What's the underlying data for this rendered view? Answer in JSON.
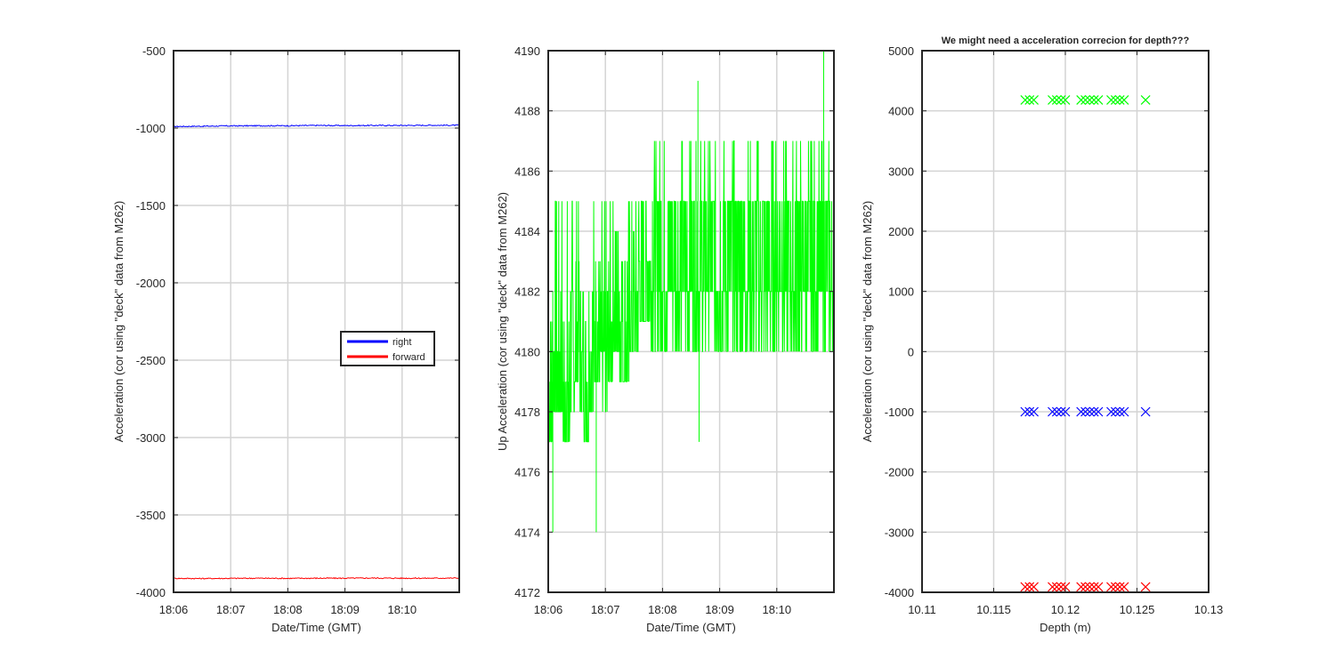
{
  "colors": {
    "right": "#0000ff",
    "forward": "#ff0000",
    "up": "#00ff00",
    "axes": "#262626",
    "grid": "#d4d4d4"
  },
  "chart_data": [
    {
      "type": "line",
      "title": "",
      "xlabel": "Date/Time (GMT)",
      "ylabel": "Acceleration (cor using \"deck\" data from M262)",
      "xlim": [
        "18:06",
        "18:11"
      ],
      "ylim": [
        -4000,
        -500
      ],
      "xticks": [
        "18:06",
        "18:07",
        "18:08",
        "18:09",
        "18:10"
      ],
      "yticks": [
        "-500",
        "-1000",
        "-1500",
        "-2000",
        "-2500",
        "-3000",
        "-3500",
        "-4000"
      ],
      "grid": true,
      "legend": {
        "position": "center-right",
        "entries": [
          "right",
          "forward"
        ]
      },
      "series": [
        {
          "name": "right",
          "color": "#0000ff",
          "x": [
            "18:06",
            "18:06:30",
            "18:07",
            "18:07:30",
            "18:08",
            "18:08:30",
            "18:09",
            "18:09:30",
            "18:10",
            "18:10:30",
            "18:11"
          ],
          "values": [
            -990,
            -988,
            -986,
            -985,
            -985,
            -983,
            -984,
            -983,
            -983,
            -982,
            -982
          ]
        },
        {
          "name": "forward",
          "color": "#ff0000",
          "x": [
            "18:06",
            "18:06:30",
            "18:07",
            "18:07:30",
            "18:08",
            "18:08:30",
            "18:09",
            "18:09:30",
            "18:10",
            "18:10:30",
            "18:11"
          ],
          "values": [
            -3910,
            -3911,
            -3910,
            -3909,
            -3910,
            -3909,
            -3909,
            -3908,
            -3909,
            -3909,
            -3908
          ]
        }
      ]
    },
    {
      "type": "line",
      "title": "",
      "xlabel": "Date/Time (GMT)",
      "ylabel": "Up Acceleration (cor using \"deck\" data from M262)",
      "xlim": [
        "18:06",
        "18:11"
      ],
      "ylim": [
        4172,
        4190
      ],
      "xticks": [
        "18:06",
        "18:07",
        "18:08",
        "18:09",
        "18:10"
      ],
      "yticks": [
        "4190",
        "4188",
        "4186",
        "4184",
        "4182",
        "4180",
        "4178",
        "4176",
        "4174",
        "4172"
      ],
      "grid": true,
      "series": [
        {
          "color": "#00ff00",
          "x": [
            "18:06",
            "18:06:10",
            "18:06:20",
            "18:06:30",
            "18:06:40",
            "18:06:50",
            "18:07",
            "18:07:10",
            "18:07:20",
            "18:07:30",
            "18:07:40",
            "18:07:50",
            "18:08",
            "18:08:10",
            "18:08:20",
            "18:08:30",
            "18:08:40",
            "18:08:50",
            "18:09",
            "18:09:10",
            "18:09:20",
            "18:09:30",
            "18:09:40",
            "18:09:50",
            "18:10",
            "18:10:10",
            "18:10:20",
            "18:10:30",
            "18:10:40",
            "18:10:50",
            "18:11"
          ],
          "values": [
            4179,
            4180,
            4179,
            4181,
            4179,
            4181,
            4180,
            4182,
            4181,
            4182,
            4183,
            4183,
            4184,
            4183,
            4184,
            4183,
            4184,
            4183,
            4183,
            4184,
            4183,
            4184,
            4183,
            4184,
            4183,
            4184,
            4183,
            4184,
            4183,
            4184,
            4183
          ]
        }
      ]
    },
    {
      "type": "scatter",
      "title": "We might need a acceleration correcion for depth???",
      "xlabel": "Depth (m)",
      "ylabel": "Acceleration (cor using \"deck\" data from M262)",
      "xlim": [
        10.11,
        10.13
      ],
      "ylim": [
        -4000,
        5000
      ],
      "xticks": [
        "10.11",
        "10.115",
        "10.12",
        "10.125",
        "10.13"
      ],
      "yticks": [
        "5000",
        "4000",
        "3000",
        "2000",
        "1000",
        "0",
        "-1000",
        "-2000",
        "-3000",
        "-4000"
      ],
      "grid": true,
      "marker": "x",
      "x": [
        10.1172,
        10.1175,
        10.1178,
        10.1191,
        10.1194,
        10.1197,
        10.12,
        10.1211,
        10.1214,
        10.1217,
        10.122,
        10.1223,
        10.1232,
        10.1235,
        10.1238,
        10.1241,
        10.1256
      ],
      "series": [
        {
          "color": "#00ff00",
          "values": [
            4180,
            4180,
            4180,
            4180,
            4180,
            4180,
            4180,
            4180,
            4180,
            4180,
            4180,
            4180,
            4180,
            4180,
            4180,
            4180,
            4180
          ]
        },
        {
          "color": "#0000ff",
          "values": [
            -1000,
            -1000,
            -1000,
            -1000,
            -1000,
            -1000,
            -1000,
            -1000,
            -1000,
            -1000,
            -1000,
            -1000,
            -1000,
            -1000,
            -1000,
            -1000,
            -1000
          ]
        },
        {
          "color": "#ff0000",
          "values": [
            -3910,
            -3910,
            -3910,
            -3910,
            -3910,
            -3910,
            -3910,
            -3910,
            -3910,
            -3910,
            -3910,
            -3910,
            -3910,
            -3910,
            -3910,
            -3910,
            -3910
          ]
        }
      ]
    }
  ]
}
